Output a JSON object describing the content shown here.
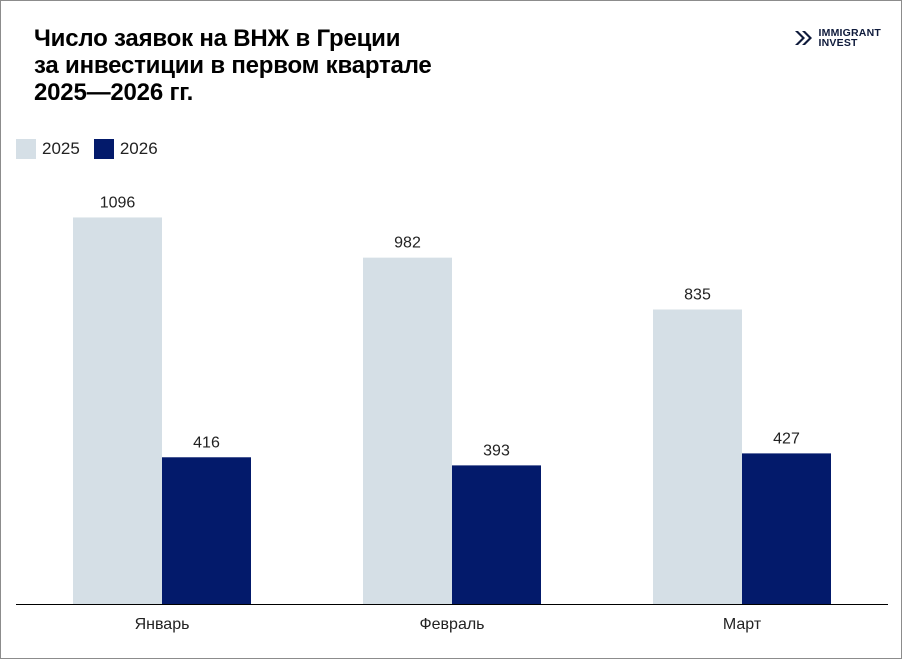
{
  "title": {
    "line1": "Число заявок на ВНЖ в Греции",
    "line2": "за инвестиции в первом квартале",
    "line3": "2025—2026 гг."
  },
  "logo": {
    "line1": "IMMIGRANT",
    "line2": "INVEST"
  },
  "chart_data": {
    "type": "bar",
    "title": "Число заявок на ВНЖ в Греции за инвестиции в первом квартале 2025—2026 гг.",
    "categories": [
      "Январь",
      "Февраль",
      "Март"
    ],
    "series": [
      {
        "name": "2025",
        "values": [
          1096,
          982,
          835
        ],
        "color": "#d5dfe6"
      },
      {
        "name": "2026",
        "values": [
          416,
          393,
          427
        ],
        "color": "#031a6b"
      }
    ],
    "ylim": [
      0,
      1100
    ],
    "grid": false,
    "legend": "top-left"
  }
}
